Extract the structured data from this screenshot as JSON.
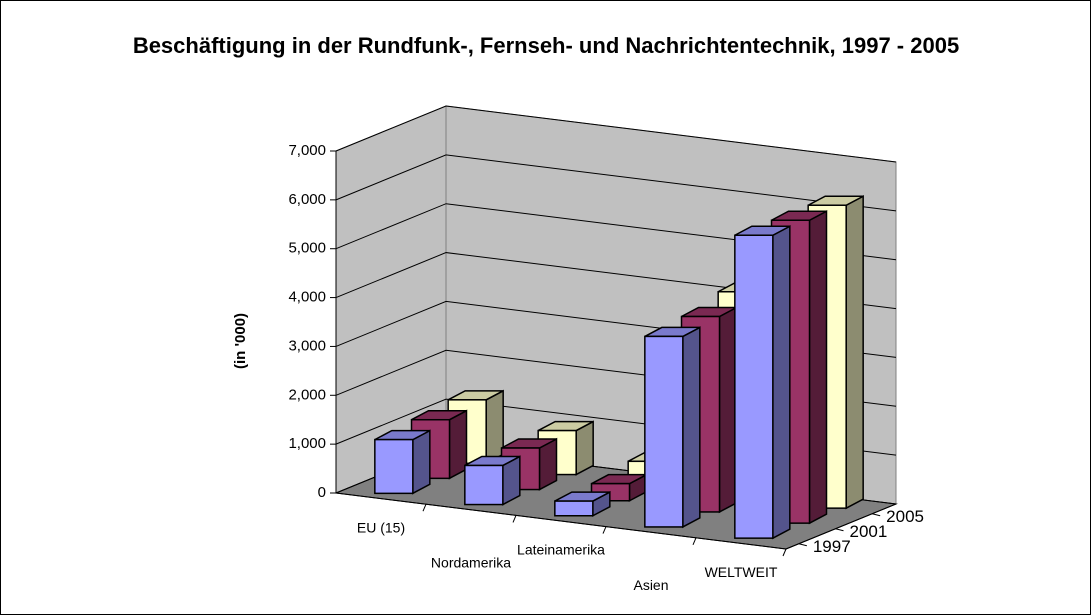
{
  "chart_data": {
    "type": "bar3d",
    "title": "Beschäftigung in der Rundfunk-, Fernseh- und Nachrichtentechnik, 1997 - 2005",
    "ylabel": "(in '000)",
    "categories": [
      "EU (15)",
      "Nordamerika",
      "Lateinamerika",
      "Asien",
      "WELTWEIT"
    ],
    "series": [
      {
        "name": "1997",
        "color": "#9999ff",
        "values": [
          1100,
          800,
          300,
          3900,
          6200
        ]
      },
      {
        "name": "2001",
        "color": "#993366",
        "values": [
          1200,
          850,
          350,
          4000,
          6200
        ]
      },
      {
        "name": "2005",
        "color": "#ffffcc",
        "values": [
          1300,
          900,
          500,
          4200,
          6200
        ]
      }
    ],
    "ylim": [
      0,
      7000
    ],
    "yticks": [
      0,
      {
        "value": 1000,
        "label": "1,000"
      },
      {
        "value": 2000,
        "label": "2,000"
      },
      {
        "value": 3000,
        "label": "3,000"
      },
      {
        "value": 4000,
        "label": "4,000"
      },
      {
        "value": 5000,
        "label": "5,000"
      },
      {
        "value": 6000,
        "label": "6,000"
      },
      {
        "value": 7000,
        "label": "7,000"
      }
    ],
    "grid": true
  }
}
